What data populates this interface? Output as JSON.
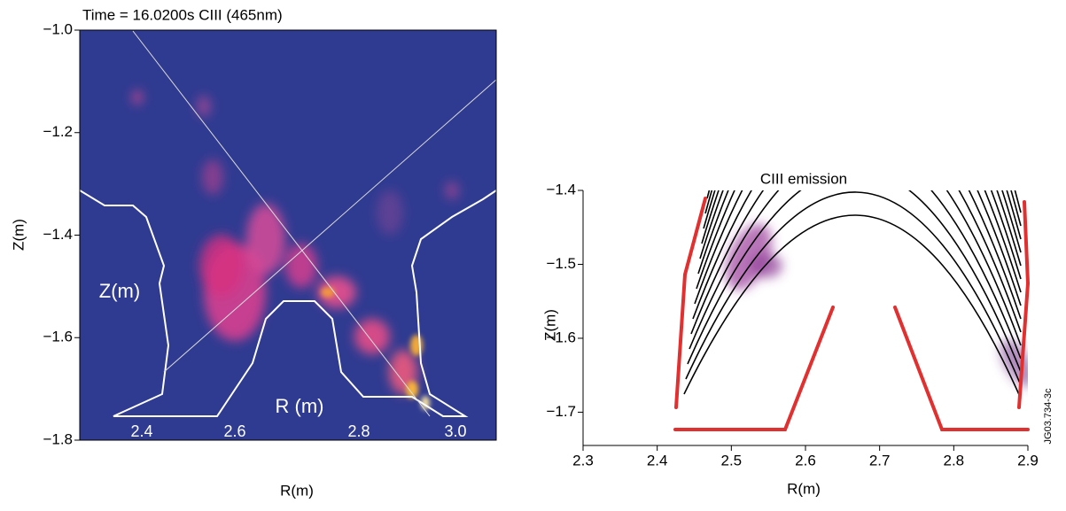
{
  "chart_data": [
    {
      "type": "image",
      "title": "Time = 16.0200s CIII (465nm)",
      "x_label": "R(m)",
      "y_label": "Z(m)",
      "ylim": [
        -1.8,
        -1.0
      ],
      "yticks": [
        {
          "value": -1.0,
          "label": "−1.0"
        },
        {
          "value": -1.2,
          "label": "−1.2"
        },
        {
          "value": -1.4,
          "label": "−1.4"
        },
        {
          "value": -1.6,
          "label": "−1.6"
        },
        {
          "value": -1.8,
          "label": "−1.8"
        }
      ],
      "annotations": [
        "Z(m)",
        "R (m)",
        "2.4",
        "2.6",
        "2.8",
        "3.0"
      ]
    },
    {
      "type": "image",
      "title": "CIII emission",
      "x_label": "R(m)",
      "y_label": "Z(m)",
      "xlim": [
        2.3,
        2.9
      ],
      "xticks": [
        2.3,
        2.4,
        2.5,
        2.6,
        2.7,
        2.8,
        2.9
      ],
      "ylim": [
        -1.745,
        -1.4
      ],
      "yticks": [
        {
          "value": -1.4,
          "label": "−1.4"
        },
        {
          "value": -1.5,
          "label": "−1.5"
        },
        {
          "value": -1.6,
          "label": "−1.6"
        },
        {
          "value": -1.7,
          "label": "−1.7"
        }
      ],
      "side_label": "JG03.734-3c"
    }
  ]
}
